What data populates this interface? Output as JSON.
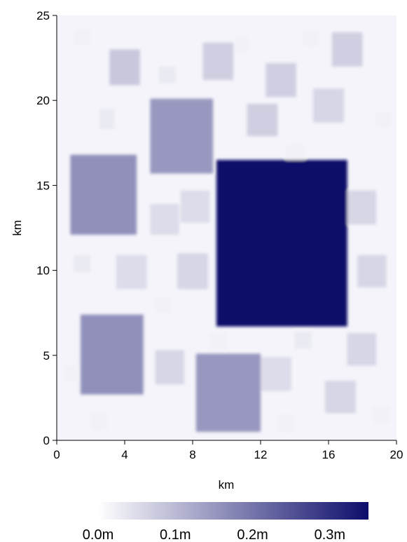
{
  "chart_data": {
    "type": "heatmap",
    "xlabel": "km",
    "ylabel": "km",
    "xlim": [
      0,
      20
    ],
    "ylim": [
      0,
      25
    ],
    "x_ticks": [
      0,
      4,
      8,
      12,
      16,
      20
    ],
    "y_ticks": [
      0,
      5,
      10,
      15,
      20,
      25
    ],
    "x_tick_labels": [
      "0",
      "4",
      "8",
      "12",
      "16",
      "20"
    ],
    "y_tick_labels": [
      "0",
      "5",
      "10",
      "15",
      "20",
      "25"
    ],
    "grid": false,
    "colorbar": {
      "range": [
        0,
        0.35
      ],
      "tick_values": [
        0,
        0.1,
        0.2,
        0.3
      ],
      "tick_labels": [
        "0.0m",
        "0.1m",
        "0.2m",
        "0.3m"
      ],
      "colors": [
        "#ffffff",
        "#0d0d6b"
      ],
      "placement": "bottom"
    },
    "patches": [
      {
        "x0": 9.4,
        "x1": 17.1,
        "y0": 6.7,
        "y1": 16.5,
        "value": 0.35
      },
      {
        "x0": 0.8,
        "x1": 4.7,
        "y0": 12.1,
        "y1": 16.8,
        "value": 0.16
      },
      {
        "x0": 5.5,
        "x1": 9.2,
        "y0": 15.7,
        "y1": 20.1,
        "value": 0.15
      },
      {
        "x0": 1.4,
        "x1": 5.1,
        "y0": 2.7,
        "y1": 7.4,
        "value": 0.16
      },
      {
        "x0": 8.2,
        "x1": 12.0,
        "y0": 0.5,
        "y1": 5.1,
        "value": 0.15
      },
      {
        "x0": 3.1,
        "x1": 4.9,
        "y0": 20.9,
        "y1": 23.0,
        "value": 0.08
      },
      {
        "x0": 8.6,
        "x1": 10.4,
        "y0": 21.2,
        "y1": 23.4,
        "value": 0.07
      },
      {
        "x0": 12.3,
        "x1": 14.1,
        "y0": 20.2,
        "y1": 22.2,
        "value": 0.07
      },
      {
        "x0": 16.2,
        "x1": 18.0,
        "y0": 22.0,
        "y1": 24.0,
        "value": 0.07
      },
      {
        "x0": 15.1,
        "x1": 16.9,
        "y0": 18.7,
        "y1": 20.7,
        "value": 0.06
      },
      {
        "x0": 11.2,
        "x1": 13.0,
        "y0": 17.9,
        "y1": 19.8,
        "value": 0.07
      },
      {
        "x0": 17.1,
        "x1": 18.8,
        "y0": 12.7,
        "y1": 14.7,
        "value": 0.06
      },
      {
        "x0": 17.7,
        "x1": 19.4,
        "y0": 9.0,
        "y1": 10.9,
        "value": 0.06
      },
      {
        "x0": 17.1,
        "x1": 18.8,
        "y0": 4.4,
        "y1": 6.3,
        "value": 0.06
      },
      {
        "x0": 15.8,
        "x1": 17.6,
        "y0": 1.6,
        "y1": 3.5,
        "value": 0.06
      },
      {
        "x0": 12.0,
        "x1": 13.8,
        "y0": 2.9,
        "y1": 4.9,
        "value": 0.05
      },
      {
        "x0": 5.8,
        "x1": 7.5,
        "y0": 3.3,
        "y1": 5.3,
        "value": 0.06
      },
      {
        "x0": 3.5,
        "x1": 5.3,
        "y0": 8.9,
        "y1": 10.9,
        "value": 0.05
      },
      {
        "x0": 7.1,
        "x1": 8.9,
        "y0": 8.9,
        "y1": 11.0,
        "value": 0.06
      },
      {
        "x0": 5.5,
        "x1": 7.2,
        "y0": 12.1,
        "y1": 13.9,
        "value": 0.05
      },
      {
        "x0": 7.3,
        "x1": 9.0,
        "y0": 12.8,
        "y1": 14.7,
        "value": 0.05
      },
      {
        "x0": 2.5,
        "x1": 3.4,
        "y0": 18.3,
        "y1": 19.5,
        "value": 0.03
      },
      {
        "x0": 1.0,
        "x1": 2.0,
        "y0": 23.3,
        "y1": 24.2,
        "value": 0.02
      },
      {
        "x0": 6.0,
        "x1": 7.0,
        "y0": 21.0,
        "y1": 22.0,
        "value": 0.03
      },
      {
        "x0": 13.5,
        "x1": 14.6,
        "y0": 16.5,
        "y1": 17.4,
        "value": 0.02
      },
      {
        "x0": 1.0,
        "x1": 2.0,
        "y0": 9.9,
        "y1": 10.9,
        "value": 0.03
      },
      {
        "x0": 9.0,
        "x1": 10.0,
        "y0": 5.3,
        "y1": 6.3,
        "value": 0.02
      },
      {
        "x0": 14.0,
        "x1": 15.0,
        "y0": 5.4,
        "y1": 6.4,
        "value": 0.03
      },
      {
        "x0": 2.0,
        "x1": 3.0,
        "y0": 0.6,
        "y1": 1.6,
        "value": 0.02
      },
      {
        "x0": 13.0,
        "x1": 14.0,
        "y0": 0.5,
        "y1": 1.5,
        "value": 0.02
      },
      {
        "x0": 18.6,
        "x1": 19.6,
        "y0": 1.0,
        "y1": 2.0,
        "value": 0.02
      },
      {
        "x0": 10.5,
        "x1": 11.3,
        "y0": 22.8,
        "y1": 23.8,
        "value": 0.02
      },
      {
        "x0": 14.5,
        "x1": 15.4,
        "y0": 23.2,
        "y1": 24.1,
        "value": 0.02
      },
      {
        "x0": 18.8,
        "x1": 19.7,
        "y0": 18.4,
        "y1": 19.3,
        "value": 0.02
      },
      {
        "x0": 5.8,
        "x1": 6.7,
        "y0": 7.5,
        "y1": 8.4,
        "value": 0.02
      },
      {
        "x0": 0.4,
        "x1": 1.2,
        "y0": 3.5,
        "y1": 4.4,
        "value": 0.02
      }
    ]
  }
}
